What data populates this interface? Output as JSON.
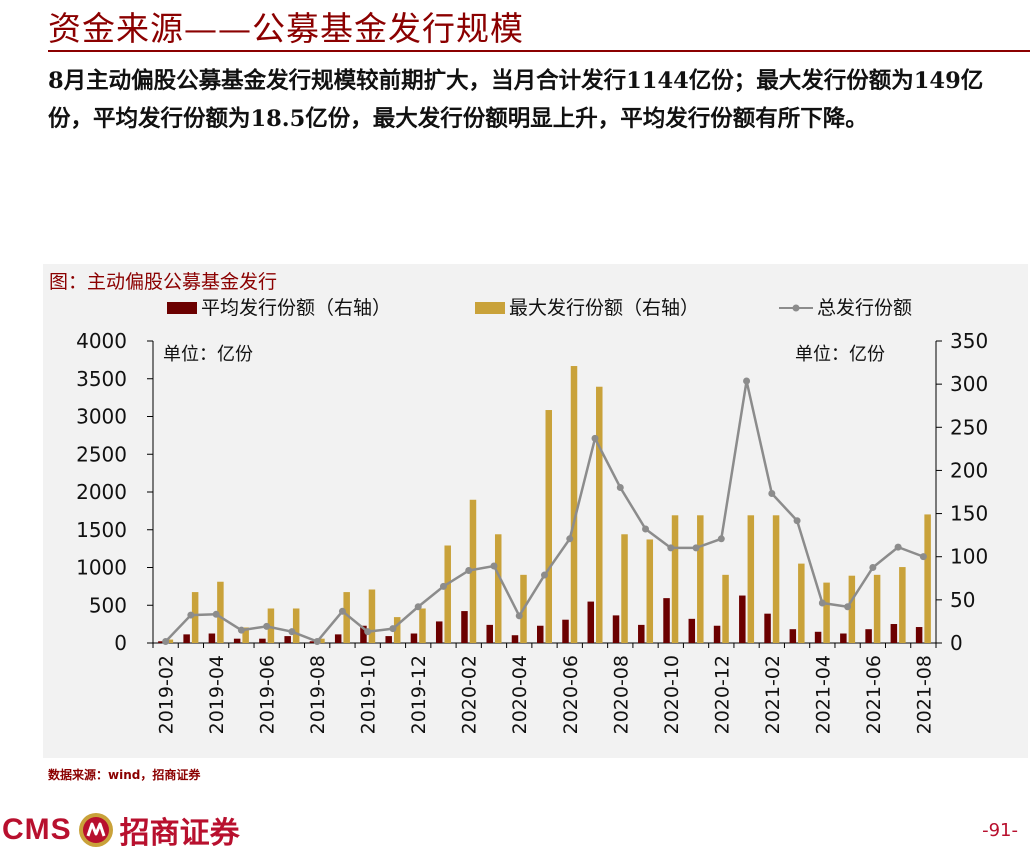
{
  "title": "资金来源——公募基金发行规模",
  "summary": "8月主动偏股公募基金发行规模较前期扩大，当月合计发行1144亿份；最大发行份额为149亿份，平均发行份额为18.5亿份，最大发行份额明显上升，平均发行份额有所下降。",
  "source": "数据来源：wind，招商证券",
  "footer": {
    "logo_text": "CMS",
    "company": "招商证券",
    "page": "-91-"
  },
  "colors": {
    "avg_bar": "#6B0000",
    "max_bar": "#C9A23A",
    "total_line": "#8c8c8c",
    "title": "#8B0000"
  },
  "chart_data": {
    "type": "bar+line",
    "title": "图：主动偏股公募基金发行",
    "unit_left": "单位：亿份",
    "unit_right": "单位：亿份",
    "legend": [
      "平均发行份额（右轴）",
      "最大发行份额（右轴）",
      "总发行份额"
    ],
    "legend_position": "top",
    "x": [
      "2019-02",
      "2019-03",
      "2019-04",
      "2019-05",
      "2019-06",
      "2019-07",
      "2019-08",
      "2019-09",
      "2019-10",
      "2019-11",
      "2019-12",
      "2020-01",
      "2020-02",
      "2020-03",
      "2020-04",
      "2020-05",
      "2020-06",
      "2020-07",
      "2020-08",
      "2020-09",
      "2020-10",
      "2020-11",
      "2020-12",
      "2021-01",
      "2021-02",
      "2021-03",
      "2021-04",
      "2021-05",
      "2021-06",
      "2021-07",
      "2021-08"
    ],
    "x_tick_labels": [
      "2019-02",
      "2019-04",
      "2019-06",
      "2019-08",
      "2019-10",
      "2019-12",
      "2020-02",
      "2020-04",
      "2020-06",
      "2020-08",
      "2020-10",
      "2020-12",
      "2021-02",
      "2021-04",
      "2021-06",
      "2021-08"
    ],
    "yleft_ticks": [
      0,
      500,
      1000,
      1500,
      2000,
      2500,
      3000,
      3500,
      4000
    ],
    "yleft_lim": [
      0,
      4000
    ],
    "yright_ticks": [
      0,
      50,
      100,
      150,
      200,
      250,
      300,
      350
    ],
    "yright_lim": [
      0,
      350
    ],
    "series": [
      {
        "name": "平均发行份额（右轴）",
        "axis": "right",
        "kind": "bar",
        "values": [
          2,
          10,
          11,
          5,
          5,
          8,
          2,
          10,
          20,
          8,
          11,
          25,
          37,
          21,
          9,
          20,
          27,
          48,
          32,
          21,
          52,
          28,
          20,
          55,
          34,
          16,
          13,
          11,
          16,
          22,
          18.5
        ]
      },
      {
        "name": "最大发行份额（右轴）",
        "axis": "right",
        "kind": "bar",
        "values": [
          4,
          59,
          71,
          18,
          40,
          40,
          5,
          59,
          62,
          30,
          40,
          113,
          166,
          126,
          79,
          270,
          321,
          297,
          126,
          120,
          148,
          148,
          79,
          148,
          148,
          92,
          70,
          78,
          79,
          88,
          149
        ]
      },
      {
        "name": "总发行份额",
        "axis": "left",
        "kind": "line",
        "values": [
          20,
          370,
          380,
          170,
          220,
          150,
          20,
          420,
          150,
          190,
          480,
          750,
          960,
          1020,
          360,
          900,
          1380,
          2710,
          2060,
          1510,
          1260,
          1260,
          1380,
          3470,
          1980,
          1620,
          530,
          480,
          1000,
          1270,
          1144
        ]
      }
    ]
  }
}
